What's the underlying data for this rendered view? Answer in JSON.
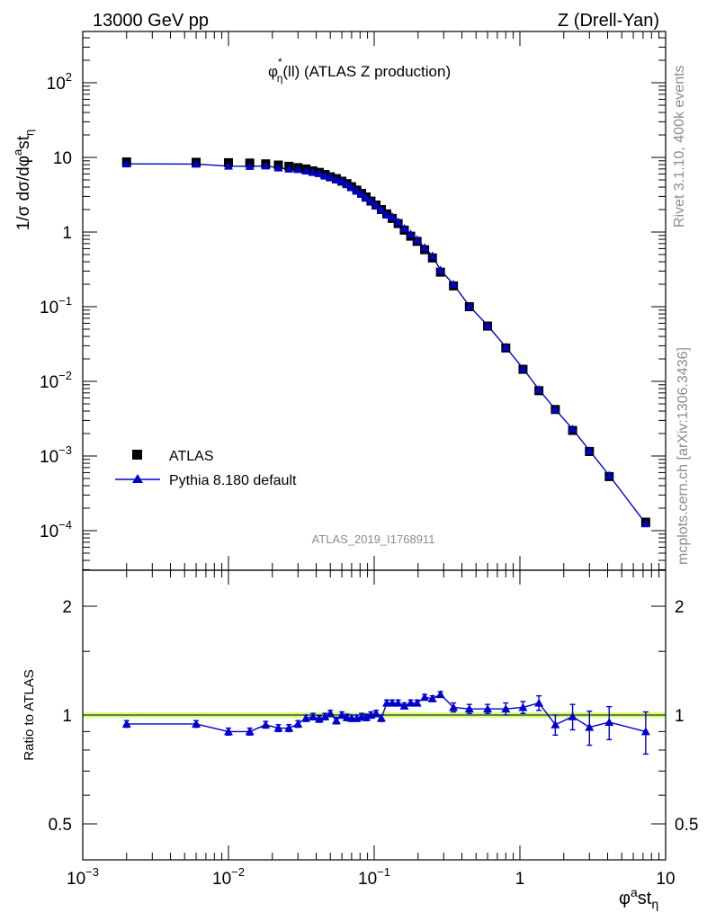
{
  "header": {
    "left": "13000 GeV pp",
    "right": "Z (Drell-Yan)"
  },
  "side": {
    "rivet": "Rivet 3.1.10,  400k events",
    "mcplots": "mcplots.cern.ch [arXiv:1306.3436]"
  },
  "chart_data": [
    {
      "type": "scatter",
      "title": "φ*η(ll) (ATLAS Z production)",
      "xscale": "log",
      "yscale": "log",
      "xlim": [
        0.001,
        10
      ],
      "ylim": [
        3e-05,
        500
      ],
      "ylabel": "1/σ dσ/dφ^a st_η",
      "watermark": "ATLAS_2019_I1768911",
      "legend_placement": "lower-left",
      "x_ticks": [
        "10^-3",
        "10^-2",
        "10^-1",
        "1",
        "10"
      ],
      "y_ticks": [
        "10^-4",
        "10^-3",
        "10^-2",
        "10^-1",
        "1",
        "10",
        "10^2"
      ],
      "x": [
        0.002,
        0.006,
        0.01,
        0.014,
        0.018,
        0.022,
        0.026,
        0.03,
        0.034,
        0.038,
        0.042,
        0.046,
        0.05,
        0.055,
        0.06,
        0.065,
        0.07,
        0.076,
        0.082,
        0.088,
        0.095,
        0.103,
        0.112,
        0.122,
        0.133,
        0.146,
        0.161,
        0.178,
        0.197,
        0.222,
        0.251,
        0.285,
        0.35,
        0.45,
        0.6,
        0.8,
        1.05,
        1.35,
        1.75,
        2.3,
        3.0,
        4.1,
        7.3
      ],
      "series": [
        {
          "name": "ATLAS",
          "color": "#000000",
          "marker": "square",
          "values": [
            8.7,
            8.6,
            8.5,
            8.4,
            8.2,
            7.9,
            7.6,
            7.3,
            7.0,
            6.6,
            6.3,
            5.9,
            5.5,
            5.2,
            4.8,
            4.45,
            4.05,
            3.65,
            3.3,
            2.95,
            2.6,
            2.3,
            2.0,
            1.75,
            1.52,
            1.3,
            1.06,
            0.88,
            0.75,
            0.58,
            0.45,
            0.29,
            0.19,
            0.1,
            0.055,
            0.028,
            0.0145,
            0.0075,
            0.0042,
            0.0022,
            0.00115,
            0.00053,
            0.00013
          ]
        },
        {
          "name": "Pythia 8.180 default",
          "color": "#0000cc",
          "marker": "triangle",
          "values": [
            8.2,
            8.15,
            7.65,
            7.6,
            7.7,
            7.25,
            7.0,
            6.9,
            6.6,
            6.3,
            6.1,
            5.65,
            5.5,
            5.0,
            4.8,
            4.4,
            3.95,
            3.55,
            3.25,
            2.85,
            2.6,
            2.25,
            1.98,
            1.7,
            1.61,
            1.37,
            1.12,
            0.94,
            0.79,
            0.62,
            0.48,
            0.31,
            0.2,
            0.102,
            0.056,
            0.0288,
            0.0149,
            0.0078,
            0.0042,
            0.0023,
            0.00118,
            0.00055,
            0.000124
          ]
        }
      ]
    },
    {
      "type": "scatter",
      "xscale": "log",
      "xlim": [
        0.001,
        10
      ],
      "yscale": "log",
      "ylim": [
        0.4,
        2.5
      ],
      "ylabel": "Ratio to ATLAS",
      "xlabel": "φ^a st_η",
      "y_ticks": [
        "0.5",
        "1",
        "2"
      ],
      "reference_line": 1,
      "band_color": "#ccff66",
      "x": [
        0.002,
        0.006,
        0.01,
        0.014,
        0.018,
        0.022,
        0.026,
        0.03,
        0.034,
        0.038,
        0.042,
        0.046,
        0.05,
        0.055,
        0.06,
        0.065,
        0.07,
        0.076,
        0.082,
        0.088,
        0.095,
        0.103,
        0.112,
        0.122,
        0.133,
        0.146,
        0.161,
        0.178,
        0.197,
        0.222,
        0.251,
        0.285,
        0.35,
        0.45,
        0.6,
        0.8,
        1.05,
        1.35,
        1.75,
        2.3,
        3.0,
        4.1,
        7.3
      ],
      "series": [
        {
          "name": "Pythia 8.180 default",
          "color": "#0000cc",
          "values": [
            0.945,
            0.945,
            0.9,
            0.9,
            0.94,
            0.92,
            0.92,
            0.945,
            0.98,
            0.99,
            0.975,
            0.99,
            1.01,
            0.965,
            1.0,
            0.985,
            0.98,
            0.98,
            0.99,
            0.985,
            1.0,
            1.01,
            0.98,
            1.08,
            1.08,
            1.08,
            1.06,
            1.08,
            1.08,
            1.12,
            1.11,
            1.14,
            1.05,
            1.04,
            1.04,
            1.04,
            1.05,
            1.08,
            0.94,
            0.99,
            0.925,
            0.955,
            0.9
          ],
          "errors": [
            0.02,
            0.02,
            0.02,
            0.02,
            0.02,
            0.02,
            0.02,
            0.02,
            0.02,
            0.02,
            0.02,
            0.02,
            0.02,
            0.02,
            0.02,
            0.02,
            0.02,
            0.02,
            0.02,
            0.02,
            0.02,
            0.02,
            0.02,
            0.02,
            0.02,
            0.02,
            0.02,
            0.02,
            0.02,
            0.02,
            0.02,
            0.02,
            0.03,
            0.03,
            0.03,
            0.04,
            0.04,
            0.05,
            0.06,
            0.08,
            0.1,
            0.1,
            0.12
          ]
        }
      ]
    }
  ]
}
